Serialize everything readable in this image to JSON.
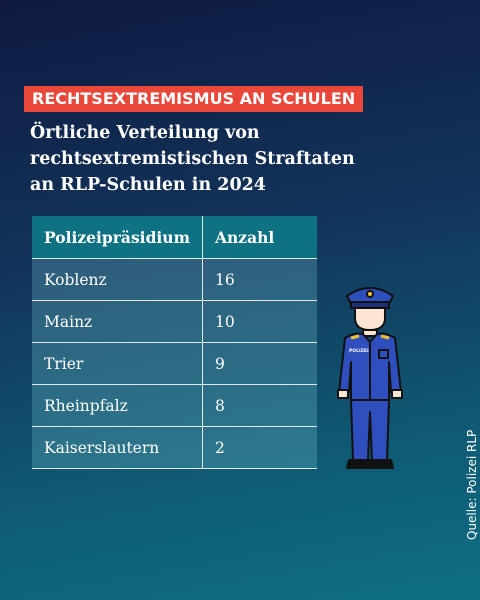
{
  "tag": "RECHTSEXTREMISMUS AN SCHULEN",
  "title": "Örtliche Verteilung von rechtsextremistischen Straftaten an RLP-Schulen in 2024",
  "table": {
    "header": [
      "Polizeipräsidium",
      "Anzahl"
    ],
    "rows": [
      [
        "Koblenz",
        16
      ],
      [
        "Mainz",
        10
      ],
      [
        "Trier",
        9
      ],
      [
        "Rheinpfalz",
        8
      ],
      [
        "Kaiserslautern",
        2
      ]
    ]
  },
  "icon_label": "POLIZEI",
  "source": "Quelle: Polizei RLP"
}
